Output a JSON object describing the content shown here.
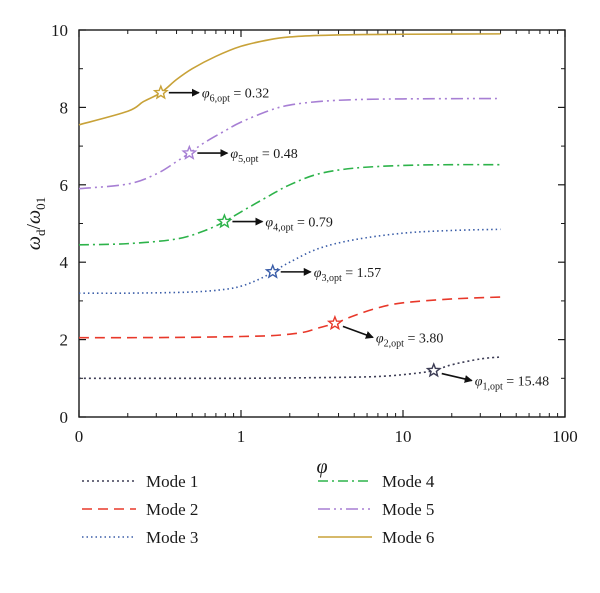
{
  "chart_data": {
    "type": "line",
    "xscale": "log",
    "xlim": [
      0.1,
      100
    ],
    "ylim": [
      0,
      10
    ],
    "x_ticks": [
      {
        "value": 0.1,
        "label": "0"
      },
      {
        "value": 1,
        "label": "1"
      },
      {
        "value": 10,
        "label": "10"
      },
      {
        "value": 100,
        "label": "100"
      }
    ],
    "y_ticks": [
      0,
      2,
      4,
      6,
      8,
      10
    ],
    "xlabel": "φ",
    "ylabel": {
      "base": "ω",
      "sub": "d",
      "sep": "/",
      "base2": "ω",
      "sub2": "01"
    },
    "legend_position": "bottom",
    "series": [
      {
        "name": "Mode 1",
        "color": "#3d3d55",
        "dash": "2,3",
        "x": [
          0.1,
          0.2,
          0.5,
          1,
          2,
          5,
          8,
          12,
          15.48,
          20,
          30,
          40
        ],
        "y": [
          1.0,
          1.0,
          1.0,
          1.0,
          1.01,
          1.03,
          1.06,
          1.13,
          1.2,
          1.35,
          1.5,
          1.55
        ]
      },
      {
        "name": "Mode 2",
        "color": "#e8382a",
        "dash": "10,6",
        "x": [
          0.1,
          0.2,
          0.5,
          1,
          1.5,
          2,
          2.5,
          3,
          3.8,
          5,
          7,
          10,
          20,
          40
        ],
        "y": [
          2.05,
          2.05,
          2.06,
          2.08,
          2.1,
          2.14,
          2.2,
          2.3,
          2.42,
          2.62,
          2.82,
          2.95,
          3.05,
          3.1
        ]
      },
      {
        "name": "Mode 3",
        "color": "#3a5da8",
        "dash": "1.5,3",
        "x": [
          0.1,
          0.2,
          0.5,
          0.8,
          1,
          1.2,
          1.4,
          1.57,
          2,
          3,
          5,
          10,
          20,
          40
        ],
        "y": [
          3.2,
          3.2,
          3.23,
          3.3,
          3.38,
          3.5,
          3.63,
          3.75,
          4.0,
          4.35,
          4.58,
          4.75,
          4.82,
          4.85
        ]
      },
      {
        "name": "Mode 4",
        "color": "#2db34a",
        "dash": "10,4,2,4",
        "x": [
          0.1,
          0.2,
          0.4,
          0.6,
          0.79,
          1,
          1.5,
          2,
          3,
          5,
          10,
          20,
          40
        ],
        "y": [
          4.45,
          4.48,
          4.6,
          4.82,
          5.05,
          5.3,
          5.72,
          6.0,
          6.28,
          6.43,
          6.5,
          6.52,
          6.52
        ]
      },
      {
        "name": "Mode 5",
        "color": "#a77fd4",
        "dash": "12,4,2,4,2,4",
        "x": [
          0.1,
          0.2,
          0.3,
          0.4,
          0.48,
          0.6,
          0.8,
          1,
          1.5,
          2,
          3,
          5,
          10,
          40
        ],
        "y": [
          5.9,
          6.02,
          6.28,
          6.6,
          6.82,
          7.1,
          7.4,
          7.62,
          7.92,
          8.06,
          8.15,
          8.2,
          8.22,
          8.23
        ]
      },
      {
        "name": "Mode 6",
        "color": "#c8a238",
        "dash": "",
        "x": [
          0.1,
          0.2,
          0.25,
          0.32,
          0.4,
          0.5,
          0.7,
          1,
          1.5,
          2,
          3,
          5,
          10,
          40
        ],
        "y": [
          7.55,
          7.9,
          8.15,
          8.38,
          8.72,
          9.0,
          9.32,
          9.58,
          9.75,
          9.82,
          9.86,
          9.88,
          9.89,
          9.9
        ]
      }
    ],
    "optima": [
      {
        "series": "Mode 1",
        "x": 15.48,
        "y": 1.2,
        "sym": "φ",
        "sub": "1,opt",
        "text": " = 15.48"
      },
      {
        "series": "Mode 2",
        "x": 3.8,
        "y": 2.42,
        "sym": "φ",
        "sub": "2,opt",
        "text": " = 3.80"
      },
      {
        "series": "Mode 3",
        "x": 1.57,
        "y": 3.75,
        "sym": "φ",
        "sub": "3,opt",
        "text": " = 1.57"
      },
      {
        "series": "Mode 4",
        "x": 0.79,
        "y": 5.05,
        "sym": "φ",
        "sub": "4,opt",
        "text": " = 0.79"
      },
      {
        "series": "Mode 5",
        "x": 0.48,
        "y": 6.82,
        "sym": "φ",
        "sub": "5,opt",
        "text": " = 0.48"
      },
      {
        "series": "Mode 6",
        "x": 0.32,
        "y": 8.38,
        "sym": "φ",
        "sub": "6,opt",
        "text": " = 0.32"
      }
    ]
  }
}
